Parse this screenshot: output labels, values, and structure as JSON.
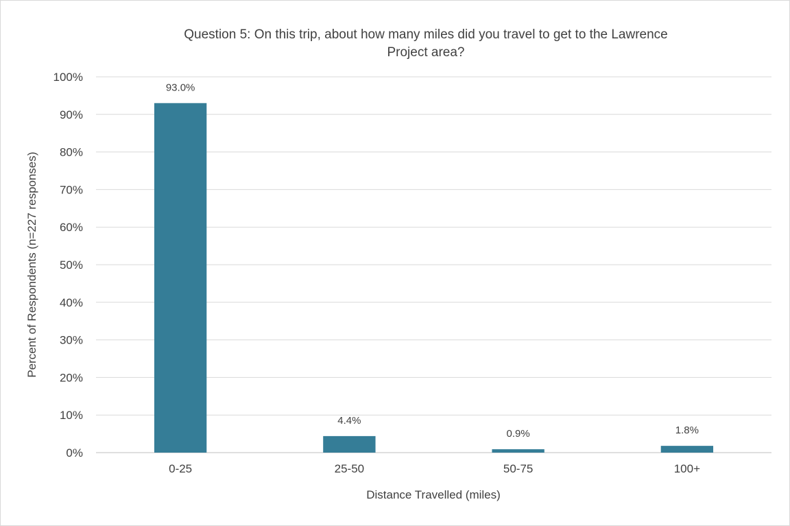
{
  "chart_data": {
    "type": "bar",
    "title_lines": [
      "Question 5: On this trip, about how many miles did you travel to get to the Lawrence",
      "Project area?"
    ],
    "categories": [
      "0-25",
      "25-50",
      "50-75",
      "100+"
    ],
    "values": [
      93.0,
      4.4,
      0.9,
      1.8
    ],
    "data_labels": [
      "93.0%",
      "4.4%",
      "0.9%",
      "1.8%"
    ],
    "xlabel": "Distance Travelled (miles)",
    "ylabel": "Percent of Respondents (n=227 responses)",
    "ylim": [
      0,
      100
    ],
    "yticks": [
      0,
      10,
      20,
      30,
      40,
      50,
      60,
      70,
      80,
      90,
      100
    ],
    "ytick_labels": [
      "0%",
      "10%",
      "20%",
      "30%",
      "40%",
      "50%",
      "60%",
      "70%",
      "80%",
      "90%",
      "100%"
    ],
    "grid": true,
    "legend": "none",
    "bar_color": "#357d97",
    "grid_color": "#d9d9d9",
    "text_color": "#404040"
  }
}
